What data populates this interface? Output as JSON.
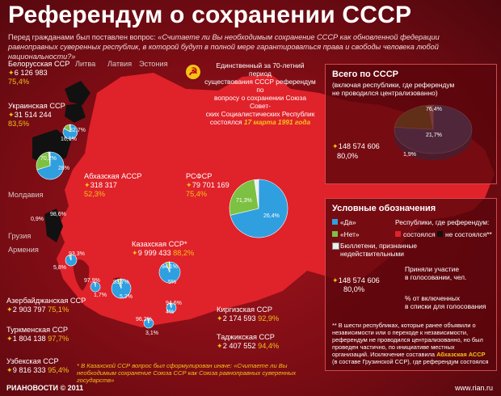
{
  "title": "Референдум о сохранении СССР",
  "question": {
    "prefix": "Перед гражданами был поставлен вопрос: ",
    "text": "«Считаете ли Вы необходимым сохранение СССР как обновленной федерации равноправных суверенных республик, в которой будут в полной мере гарантироваться права и свободы человека любой национальности?»"
  },
  "center_note": {
    "line1": "Единственный за 70-летний период",
    "line2": "существования СССР референдум по",
    "line3": "вопросу о сохранении Союза Совет-",
    "line4": "ских Социалистических Республик",
    "line5_prefix": "состоялся ",
    "date": "17 марта 1991 года"
  },
  "emblem": "hammer-sickle-icon",
  "baltic": [
    "Литва",
    "Латвия",
    "Эстония"
  ],
  "regions": {
    "belarus": {
      "name": "Белорусская ССР",
      "voters": "6 126 983",
      "pct": "75,4%"
    },
    "ukraine": {
      "name": "Украинская ССР",
      "voters": "31 514 244",
      "pct": "83,5%"
    },
    "abkhazia": {
      "name": "Абхазская АССР",
      "voters": "318 317",
      "pct": "52,3%"
    },
    "rsfsr": {
      "name": "РСФСР",
      "voters": "79 701 169",
      "pct": "75,4%"
    },
    "kazakh": {
      "name": "Казахская ССР*",
      "voters": "9 999 433",
      "pct": "88,2%"
    },
    "azerbaijan": {
      "name": "Азербайджанская ССР",
      "voters": "2 903 797",
      "pct": "75,1%"
    },
    "turkmen": {
      "name": "Туркменская ССР",
      "voters": "1 804 138",
      "pct": "97,7%"
    },
    "uzbek": {
      "name": "Узбекская ССР",
      "voters": "9 816 333",
      "pct": "95,4%"
    },
    "kyrgyz": {
      "name": "Киргизская ССР",
      "voters": "2 174 593",
      "pct": "92,9%"
    },
    "tajik": {
      "name": "Таджикская ССР",
      "voters": "2 407 552",
      "pct": "94,4%"
    }
  },
  "grey_labels": [
    "Молдавия",
    "Грузия",
    "Армения"
  ],
  "pies": {
    "rsfsr": {
      "yes": 71.3,
      "no": 26.4,
      "yes_label": "71,3%",
      "no_label": "26,4%"
    },
    "ukraine": {
      "yes": 70.2,
      "no": 28,
      "yes_label": "70,2%",
      "no_label": "28%"
    },
    "belarus": {
      "yes": 82.7,
      "no": 16.1,
      "yes_label": "82,7%",
      "no_label": "16,1%"
    },
    "kazakh": {
      "yes": 94.1,
      "no": 5,
      "yes_label": "94,1%",
      "no_label": "5%"
    },
    "uzbek": {
      "yes": 93.7,
      "no": 5.2,
      "yes_label": "93,7%",
      "no_label": "5,2%"
    },
    "azerbaijan": {
      "yes": 93.3,
      "no": 5.8,
      "yes_label": "93,3%",
      "no_label": "5,8%"
    },
    "turkmen": {
      "yes": 97.9,
      "no": 1.7,
      "yes_label": "97,9%",
      "no_label": "1,7%"
    },
    "kyrgyz": {
      "yes": 94.6,
      "no": 4.0,
      "yes_label": "94,6%",
      "no_label": "4%"
    },
    "tajik": {
      "yes": 96.2,
      "no": 3.1,
      "yes_label": "96,2%",
      "no_label": "3,1%"
    },
    "abkhazia_labels": {
      "yes_label": "98,6%",
      "no_label": "0,9%"
    }
  },
  "total": {
    "title": "Всего по СССР",
    "sub1": "(включая республики, где референдум",
    "sub2": "не проводился централизованно)",
    "voters": "148 574 606",
    "pct": "80,0%",
    "yes": 76.4,
    "no": 21.7,
    "invalid": 1.9,
    "yes_label": "76,4%",
    "no_label": "21,7%",
    "invalid_label": "1,9%"
  },
  "legend": {
    "title": "Условные обозначения",
    "yes": "«Да»",
    "no": "«Нет»",
    "invalid1": "Бюллетени, признанные",
    "invalid2": "недействительными",
    "republics_title": "Республики, где референдум:",
    "held": "состоялся",
    "not_held": "не состоялся**",
    "took_part1": "Приняли участие",
    "took_part2": "в голосовании, чел.",
    "example_voters": "148 574 606",
    "example_pct": "80,0%",
    "pct_note1": "% от включенных",
    "pct_note2": "в списки для голосования",
    "footnote": "** В шести республиках, которые ранее объявили о независимости или о переходе к независимости, референдум не проводился централизованно, но был проведен частично, по инициативе местных организаций. Исключение составила ",
    "footnote_bold": "Абхазская АССР",
    "footnote_end": " (в составе Грузинской ССР), где референдум состоялся"
  },
  "kazakh_note": "* В Казахской ССР вопрос был сформулирован иначе: «Считаете ли Вы необходимым сохранение Союза ССР как Союза равноправных суверенных государств»",
  "footer": "РИАНОВОСТИ © 2011",
  "rian": "www.rian.ru",
  "colors": {
    "yes": "#2f9fe0",
    "no": "#7cc142",
    "map": "#e0222a",
    "accent": "#f5c21a",
    "pin": "#f5c21a"
  }
}
